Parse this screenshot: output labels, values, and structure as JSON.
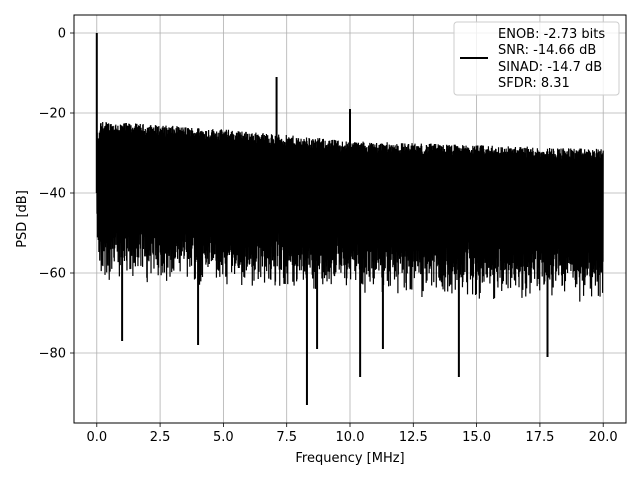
{
  "chart_data": {
    "type": "line",
    "title": "",
    "xlabel": "Frequency [MHz]",
    "ylabel": "PSD [dB]",
    "xlim": [
      -0.9,
      20.9
    ],
    "ylim": [
      -97.5,
      4.5
    ],
    "xticks": [
      0.0,
      2.5,
      5.0,
      7.5,
      10.0,
      12.5,
      15.0,
      17.5,
      20.0
    ],
    "xtick_labels": [
      "0.0",
      "2.5",
      "5.0",
      "7.5",
      "10.0",
      "12.5",
      "15.0",
      "17.5",
      "20.0"
    ],
    "yticks": [
      0,
      -20,
      -40,
      -60,
      -80
    ],
    "ytick_labels": [
      "0",
      "−20",
      "−40",
      "−60",
      "−80"
    ],
    "grid": true,
    "legend_position": "top-right",
    "series": [
      {
        "color": "#000000",
        "x_range": [
          0,
          20
        ],
        "noise_ceiling_db": [
          [
            0,
            -23
          ],
          [
            5,
            -25
          ],
          [
            10,
            -28
          ],
          [
            15,
            -29
          ],
          [
            20,
            -30
          ]
        ],
        "noise_floor_db": [
          [
            0,
            -55
          ],
          [
            20,
            -60
          ]
        ],
        "peaks": [
          {
            "x": 0.0,
            "y": 0.0
          },
          {
            "x": 7.1,
            "y": -11.0
          },
          {
            "x": 10.0,
            "y": -19.0
          }
        ],
        "dips": [
          {
            "x": 1.0,
            "y": -77.0
          },
          {
            "x": 4.0,
            "y": -78.0
          },
          {
            "x": 8.3,
            "y": -93.0
          },
          {
            "x": 8.7,
            "y": -79.0
          },
          {
            "x": 10.4,
            "y": -86.0
          },
          {
            "x": 11.3,
            "y": -79.0
          },
          {
            "x": 14.3,
            "y": -86.0
          },
          {
            "x": 17.8,
            "y": -81.0
          }
        ]
      }
    ],
    "legend": {
      "line_color": "#000000",
      "lines": [
        "ENOB: -2.73 bits",
        "SNR: -14.66 dB",
        "SINAD: -14.7 dB",
        "SFDR: 8.31"
      ]
    }
  }
}
